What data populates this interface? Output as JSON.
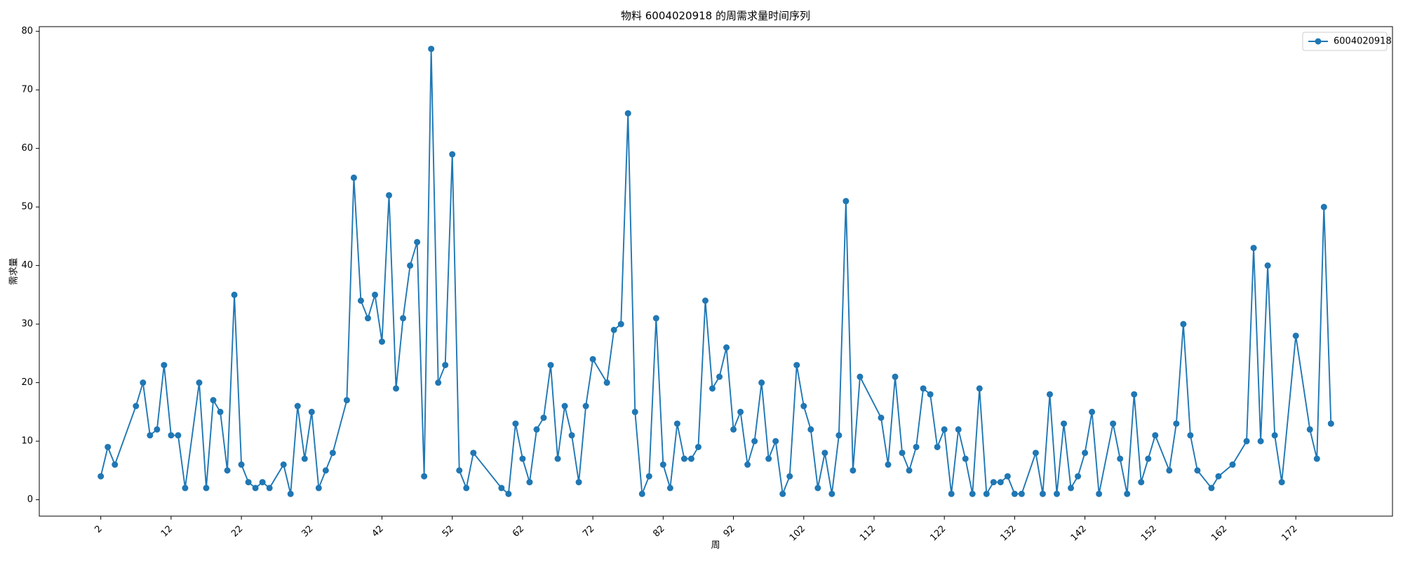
{
  "chart_data": {
    "type": "line",
    "title": "物料 6004020918 的周需求量时间序列",
    "x_label": "周",
    "y_label": "需求量",
    "x": [
      2,
      3,
      4,
      7,
      8,
      9,
      10,
      11,
      12,
      13,
      14,
      16,
      17,
      18,
      19,
      20,
      21,
      22,
      23,
      24,
      25,
      26,
      28,
      29,
      30,
      31,
      32,
      33,
      34,
      35,
      37,
      38,
      39,
      40,
      41,
      42,
      43,
      44,
      45,
      46,
      47,
      48,
      49,
      50,
      51,
      52,
      53,
      54,
      55,
      59,
      60,
      61,
      62,
      63,
      64,
      65,
      66,
      67,
      68,
      69,
      70,
      71,
      72,
      74,
      75,
      76,
      77,
      78,
      79,
      80,
      81,
      82,
      83,
      84,
      85,
      86,
      87,
      88,
      89,
      90,
      91,
      92,
      93,
      94,
      95,
      96,
      97,
      98,
      99,
      100,
      101,
      102,
      103,
      104,
      105,
      106,
      107,
      108,
      109,
      110,
      113,
      114,
      115,
      116,
      117,
      118,
      119,
      120,
      121,
      122,
      123,
      124,
      125,
      126,
      127,
      128,
      129,
      130,
      131,
      132,
      133,
      135,
      136,
      137,
      138,
      139,
      140,
      141,
      142,
      143,
      144,
      146,
      147,
      148,
      149,
      150,
      151,
      152,
      154,
      155,
      156,
      157,
      158,
      160,
      161,
      163,
      165,
      166,
      167,
      168,
      169,
      170,
      172,
      174,
      175,
      176,
      177
    ],
    "series": [
      {
        "name": "6004020918",
        "color": "#1f77b4",
        "values": [
          4,
          9,
          6,
          16,
          20,
          11,
          12,
          23,
          11,
          11,
          2,
          20,
          2,
          17,
          15,
          5,
          35,
          6,
          3,
          2,
          3,
          2,
          6,
          1,
          16,
          7,
          15,
          2,
          5,
          8,
          17,
          55,
          34,
          31,
          35,
          27,
          52,
          19,
          31,
          40,
          44,
          4,
          77,
          20,
          23,
          59,
          5,
          2,
          8,
          2,
          1,
          13,
          7,
          3,
          12,
          14,
          23,
          7,
          16,
          11,
          3,
          16,
          24,
          20,
          29,
          30,
          66,
          15,
          1,
          4,
          31,
          6,
          2,
          13,
          7,
          7,
          9,
          34,
          19,
          21,
          26,
          12,
          15,
          6,
          10,
          20,
          7,
          10,
          1,
          4,
          23,
          16,
          12,
          2,
          8,
          1,
          11,
          51,
          5,
          21,
          14,
          6,
          21,
          8,
          5,
          9,
          19,
          18,
          9,
          12,
          1,
          12,
          7,
          1,
          19,
          1,
          3,
          3,
          4,
          1,
          1,
          8,
          1,
          18,
          1,
          13,
          2,
          4,
          8,
          15,
          1,
          13,
          7,
          1,
          18,
          3,
          7,
          11,
          5,
          13,
          30,
          11,
          5,
          2,
          4,
          6,
          10,
          43,
          10,
          40,
          11,
          3,
          28,
          12,
          7,
          50,
          13
        ]
      }
    ],
    "xlim": [
      -6.75,
      185.75
    ],
    "ylim": [
      -2.8,
      80.8
    ],
    "xticks": [
      2,
      12,
      22,
      32,
      42,
      52,
      62,
      72,
      82,
      92,
      102,
      112,
      122,
      132,
      142,
      152,
      162,
      172
    ],
    "yticks": [
      0,
      10,
      20,
      30,
      40,
      50,
      60,
      70,
      80
    ],
    "legend": "upper right"
  }
}
